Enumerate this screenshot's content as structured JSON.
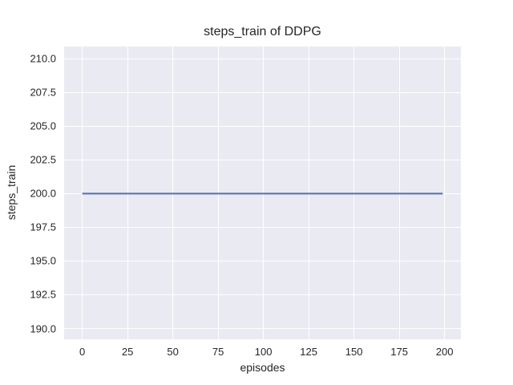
{
  "chart_data": {
    "type": "line",
    "title": "steps_train of DDPG",
    "xlabel": "episodes",
    "ylabel": "steps_train",
    "xlim": [
      -10,
      209
    ],
    "ylim": [
      189.2,
      210.9
    ],
    "xticks": [
      0,
      25,
      50,
      75,
      100,
      125,
      150,
      175,
      200
    ],
    "xtick_labels": [
      "0",
      "25",
      "50",
      "75",
      "100",
      "125",
      "150",
      "175",
      "200"
    ],
    "yticks": [
      190.0,
      192.5,
      195.0,
      197.5,
      200.0,
      202.5,
      205.0,
      207.5,
      210.0
    ],
    "ytick_labels": [
      "190.0",
      "192.5",
      "195.0",
      "197.5",
      "200.0",
      "202.5",
      "205.0",
      "207.5",
      "210.0"
    ],
    "grid": true,
    "legend": false,
    "series": [
      {
        "name": "steps_train",
        "x": [
          0,
          199
        ],
        "y": [
          200,
          200
        ],
        "color": "#4c72b0",
        "line_width": 2
      }
    ],
    "style": {
      "figure_background": "#ffffff",
      "plot_background": "#eaeaf2",
      "grid_color": "#ffffff",
      "text_color": "#262626"
    }
  }
}
